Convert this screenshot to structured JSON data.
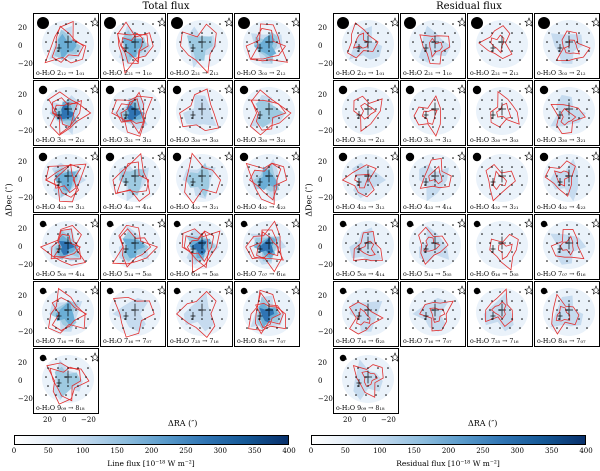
{
  "titles": {
    "left": "Total flux",
    "right": "Residual flux"
  },
  "left_panels": [
    "o-H₂O 2₁₂ → 1₀₁",
    "o-H₂O 2₂₁ → 1₁₀",
    "o-H₂O 2₂₁ → 2₁₂",
    "o-H₂O 3₀₃ → 2₁₂",
    "o-H₂O 3₂₁ → 2₁₂",
    "o-H₂O 3₂₁ → 3₁₂",
    "o-H₂O 3₃₀ → 3₀₃",
    "o-H₂O 3₃₀ → 3₂₁",
    "o-H₂O 4₂₃ → 3₁₂",
    "o-H₂O 4₂₃ → 4₁₄",
    "o-H₂O 4₃₂ → 3₂₁",
    "o-H₂O 4₃₂ → 4₂₃",
    "o-H₂O 5₀₅ → 4₁₄",
    "o-H₂O 5₁₄ → 5₀₅",
    "o-H₂O 6₁₆ → 5₀₅",
    "o-H₂O 7₀₇ → 6₁₆",
    "o-H₂O 7₁₆ → 6₂₅",
    "o-H₂O 7₁₆ → 7₀₇",
    "o-H₂O 7₂₅ → 7₁₆",
    "o-H₂O 8₁₈ → 7₀₇",
    "o-H₂O 9₀₉ → 8₁₈"
  ],
  "right_panels": [
    "o-H₂O 2₁₂ → 1₀₁",
    "o-H₂O 2₂₁ → 1₁₀",
    "o-H₂O 2₂₁ → 2₁₂",
    "o-H₂O 3₀₃ → 2₁₂",
    "o-H₂O 3₂₁ → 2₁₂",
    "o-H₂O 3₂₁ → 3₁₂",
    "o-H₂O 3₃₀ → 3₀₃",
    "o-H₂O 3₃₀ → 3₂₁",
    "o-H₂O 4₂₃ → 3₁₂",
    "o-H₂O 4₂₃ → 4₁₄",
    "o-H₂O 4₃₂ → 3₂₁",
    "o-H₂O 4₃₂ → 4₂₃",
    "o-H₂O 5₀₅ → 4₁₄",
    "o-H₂O 5₁₄ → 5₀₅",
    "o-H₂O 6₁₆ → 5₀₅",
    "o-H₂O 7₀₇ → 6₁₆",
    "o-H₂O 7₁₆ → 6₂₅",
    "o-H₂O 7₁₆ → 7₀₇",
    "o-H₂O 7₂₅ → 7₁₆",
    "o-H₂O 8₁₈ → 7₀₇",
    "o-H₂O 9₀₉ → 8₁₈"
  ],
  "left_intensity": [
    0.55,
    0.65,
    0.3,
    0.6,
    0.85,
    0.7,
    0.25,
    0.45,
    0.65,
    0.45,
    0.3,
    0.5,
    0.75,
    0.55,
    0.75,
    0.8,
    0.55,
    0.25,
    0.25,
    0.8,
    0.45
  ],
  "right_intensity": [
    0.15,
    0.15,
    0.05,
    0.2,
    0.08,
    0.08,
    0.05,
    0.1,
    0.12,
    0.15,
    0.08,
    0.1,
    0.12,
    0.1,
    0.08,
    0.15,
    0.1,
    0.12,
    0.12,
    0.1,
    0.12
  ],
  "axes": {
    "ylabel": "ΔDec (″)",
    "xlabel": "ΔRA (″)",
    "yticks": [
      "20",
      "0",
      "−20"
    ],
    "xticks": [
      "20",
      "0",
      "−20"
    ]
  },
  "colorbars": {
    "left_label": "Line flux [10⁻¹⁸ W m⁻²]",
    "right_label": "Residual flux [10⁻¹⁸ W m⁻²]",
    "ticks": [
      "0",
      "50",
      "100",
      "150",
      "200",
      "250",
      "300",
      "350",
      "400"
    ],
    "range": [
      0,
      400
    ],
    "colormap": "Blues"
  },
  "colors": {
    "contour": "#e03030",
    "marker": "#000000"
  }
}
